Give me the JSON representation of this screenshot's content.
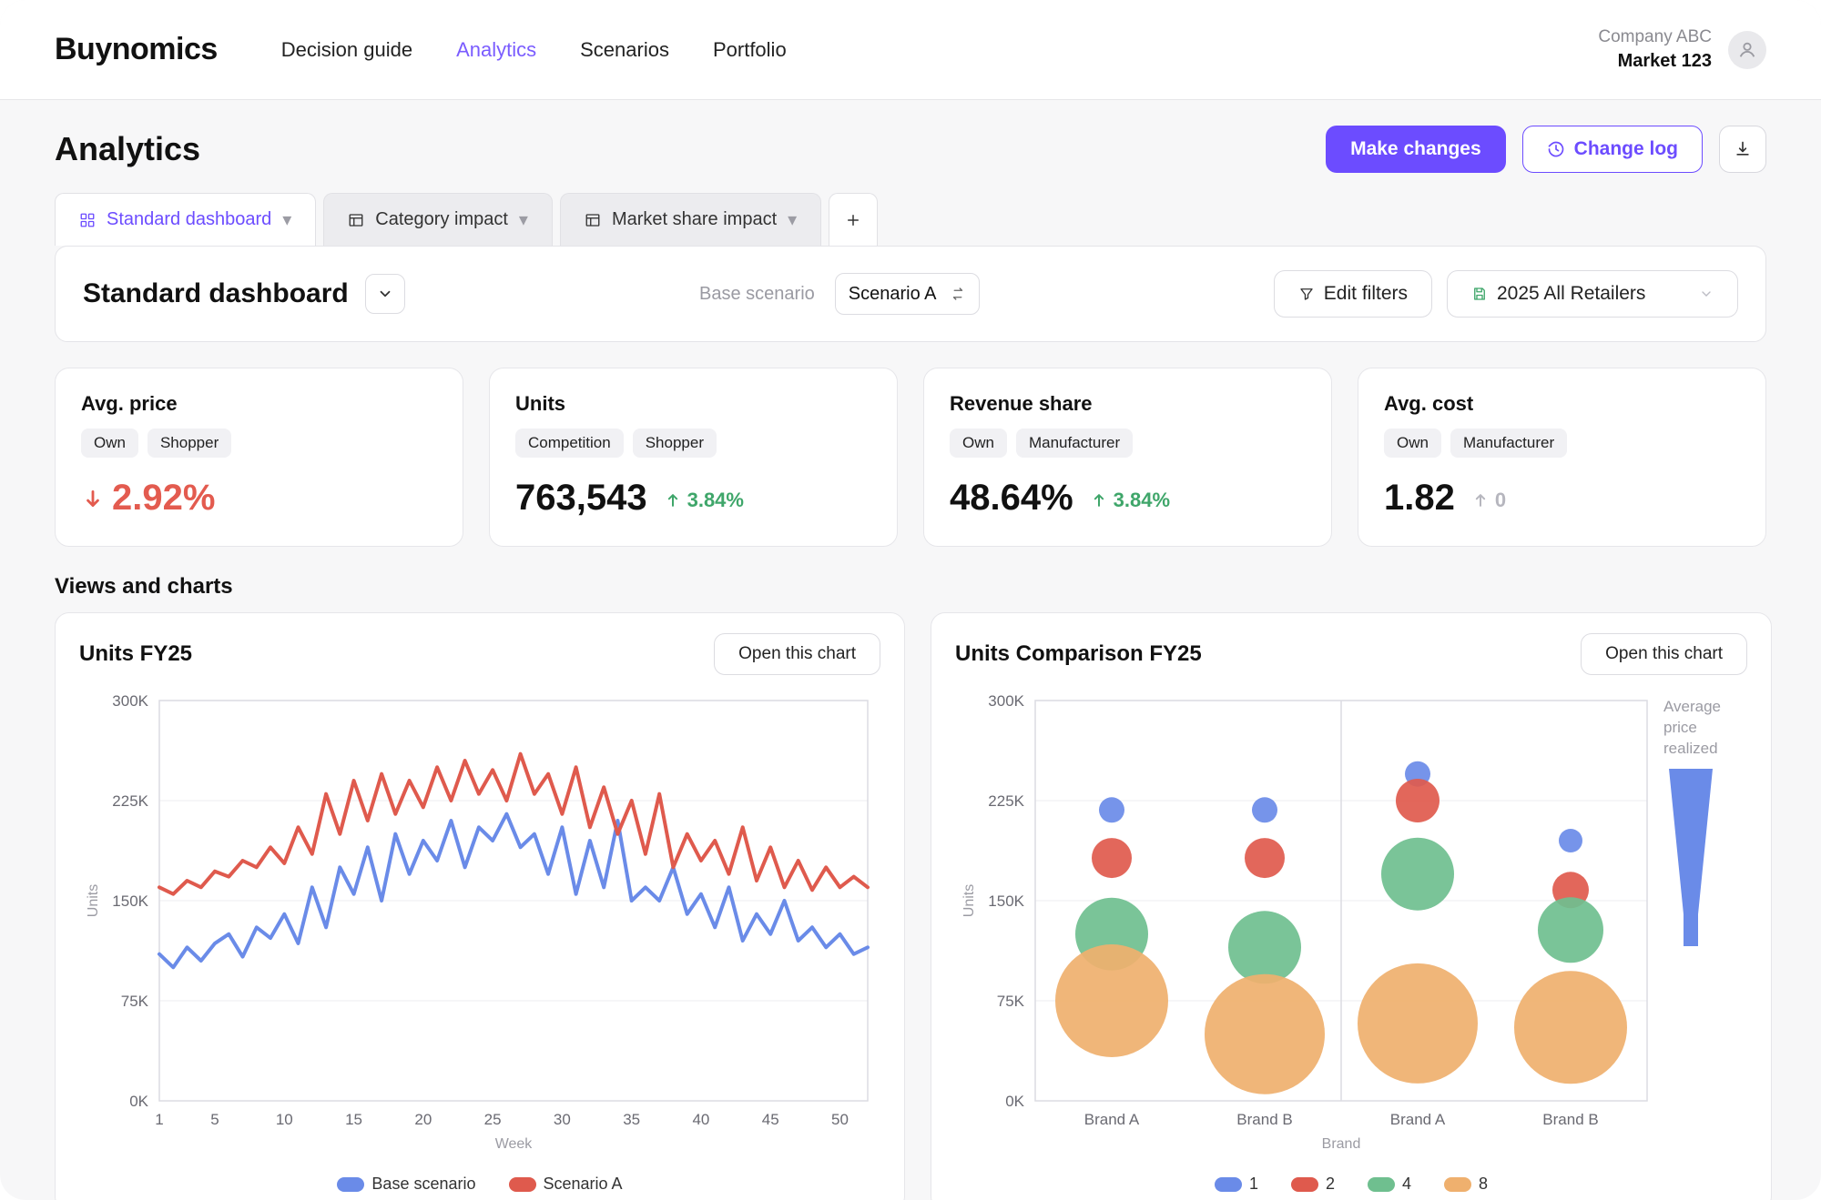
{
  "brand": "Buynomics",
  "nav": {
    "items": [
      "Decision guide",
      "Analytics",
      "Scenarios",
      "Portfolio"
    ],
    "activeIndex": 1
  },
  "account": {
    "company": "Company ABC",
    "market": "Market 123"
  },
  "page": {
    "title": "Analytics"
  },
  "actions": {
    "make_changes": "Make changes",
    "change_log": "Change log"
  },
  "tabs": {
    "items": [
      {
        "label": "Standard dashboard",
        "icon": "dashboard",
        "active": true
      },
      {
        "label": "Category impact",
        "icon": "layout",
        "active": false
      },
      {
        "label": "Market share impact",
        "icon": "layout",
        "active": false
      }
    ]
  },
  "dashboard": {
    "title": "Standard dashboard",
    "base_label": "Base scenario",
    "scenario_label": "Scenario A",
    "edit_filters": "Edit filters",
    "retailer_filter": "2025 All Retailers"
  },
  "kpis": [
    {
      "title": "Avg. price",
      "chips": [
        "Own",
        "Shopper"
      ],
      "value": "2.92%",
      "delta": "",
      "direction": "down",
      "value_color": "#e35b4f",
      "show_arrow_before_value": true
    },
    {
      "title": "Units",
      "chips": [
        "Competition",
        "Shopper"
      ],
      "value": "763,543",
      "delta": "3.84%",
      "direction": "up",
      "value_color": "#111",
      "delta_color": "#3fa66a"
    },
    {
      "title": "Revenue share",
      "chips": [
        "Own",
        "Manufacturer"
      ],
      "value": "48.64%",
      "delta": "3.84%",
      "direction": "up",
      "value_color": "#111",
      "delta_color": "#3fa66a"
    },
    {
      "title": "Avg. cost",
      "chips": [
        "Own",
        "Manufacturer"
      ],
      "value": "1.82",
      "delta": "0",
      "direction": "up",
      "value_color": "#111",
      "delta_color": "#b6b6be"
    }
  ],
  "section_views": "Views and charts",
  "open_chart_label": "Open this chart",
  "line_chart": {
    "title": "Units FY25",
    "type": "line",
    "x_axis_label": "Week",
    "y_axis_label": "Units",
    "ylim": [
      0,
      300
    ],
    "yticks": [
      0,
      75,
      150,
      225,
      300
    ],
    "ytick_labels": [
      "0K",
      "75K",
      "150K",
      "225K",
      "300K"
    ],
    "xticks": [
      1,
      5,
      10,
      15,
      20,
      25,
      30,
      35,
      40,
      45,
      50
    ],
    "grid_color": "#ececf0",
    "border_color": "#dcdce2",
    "background_color": "#ffffff",
    "line_width": 4,
    "series": [
      {
        "name": "Base scenario",
        "color": "#6a8be8",
        "y": [
          110,
          100,
          115,
          105,
          118,
          125,
          108,
          130,
          122,
          140,
          118,
          160,
          130,
          175,
          155,
          190,
          150,
          200,
          170,
          195,
          180,
          210,
          175,
          205,
          195,
          215,
          190,
          200,
          170,
          205,
          155,
          195,
          160,
          210,
          150,
          160,
          150,
          175,
          140,
          155,
          130,
          160,
          120,
          140,
          125,
          150,
          120,
          130,
          115,
          125,
          110,
          115
        ]
      },
      {
        "name": "Scenario A",
        "color": "#df5a4d",
        "y": [
          160,
          155,
          165,
          160,
          172,
          168,
          180,
          175,
          190,
          178,
          205,
          185,
          230,
          200,
          240,
          210,
          245,
          215,
          240,
          220,
          250,
          225,
          255,
          230,
          248,
          225,
          260,
          230,
          245,
          215,
          250,
          205,
          235,
          200,
          225,
          185,
          230,
          175,
          200,
          180,
          195,
          170,
          205,
          165,
          190,
          160,
          180,
          158,
          175,
          160,
          168,
          160
        ]
      }
    ],
    "legend": [
      "Base scenario",
      "Scenario A"
    ]
  },
  "bubble_chart": {
    "title": "Units Comparison FY25",
    "type": "bubble",
    "x_axis_label": "Brand",
    "y_axis_label": "Units",
    "ylim": [
      0,
      300
    ],
    "yticks": [
      0,
      75,
      150,
      225,
      300
    ],
    "ytick_labels": [
      "0K",
      "75K",
      "150K",
      "225K",
      "300K"
    ],
    "facets": 2,
    "categories": [
      "Brand A",
      "Brand B",
      "Brand A",
      "Brand B"
    ],
    "grid_color": "#ececf0",
    "border_color": "#dcdce2",
    "background_color": "#ffffff",
    "size_legend_values": [
      "1",
      "2",
      "4",
      "8"
    ],
    "size_legend_colors": [
      "#6a8be8",
      "#df5a4d",
      "#6fbf8f",
      "#efb06e"
    ],
    "side_label": "Average price realized",
    "bubbles": [
      {
        "cat": 0,
        "y": 218,
        "r": 14,
        "color": "#6a8be8"
      },
      {
        "cat": 0,
        "y": 182,
        "r": 22,
        "color": "#df5a4d"
      },
      {
        "cat": 0,
        "y": 125,
        "r": 40,
        "color": "#6fbf8f"
      },
      {
        "cat": 0,
        "y": 75,
        "r": 62,
        "color": "#efb06e"
      },
      {
        "cat": 1,
        "y": 218,
        "r": 14,
        "color": "#6a8be8"
      },
      {
        "cat": 1,
        "y": 182,
        "r": 22,
        "color": "#df5a4d"
      },
      {
        "cat": 1,
        "y": 115,
        "r": 40,
        "color": "#6fbf8f"
      },
      {
        "cat": 1,
        "y": 50,
        "r": 66,
        "color": "#efb06e"
      },
      {
        "cat": 2,
        "y": 245,
        "r": 14,
        "color": "#6a8be8"
      },
      {
        "cat": 2,
        "y": 225,
        "r": 24,
        "color": "#df5a4d"
      },
      {
        "cat": 2,
        "y": 170,
        "r": 40,
        "color": "#6fbf8f"
      },
      {
        "cat": 2,
        "y": 58,
        "r": 66,
        "color": "#efb06e"
      },
      {
        "cat": 3,
        "y": 195,
        "r": 13,
        "color": "#6a8be8"
      },
      {
        "cat": 3,
        "y": 158,
        "r": 20,
        "color": "#df5a4d"
      },
      {
        "cat": 3,
        "y": 128,
        "r": 36,
        "color": "#6fbf8f"
      },
      {
        "cat": 3,
        "y": 55,
        "r": 62,
        "color": "#efb06e"
      }
    ]
  },
  "colors": {
    "accent": "#6c4cff",
    "accent_soft": "#7a5cff"
  }
}
